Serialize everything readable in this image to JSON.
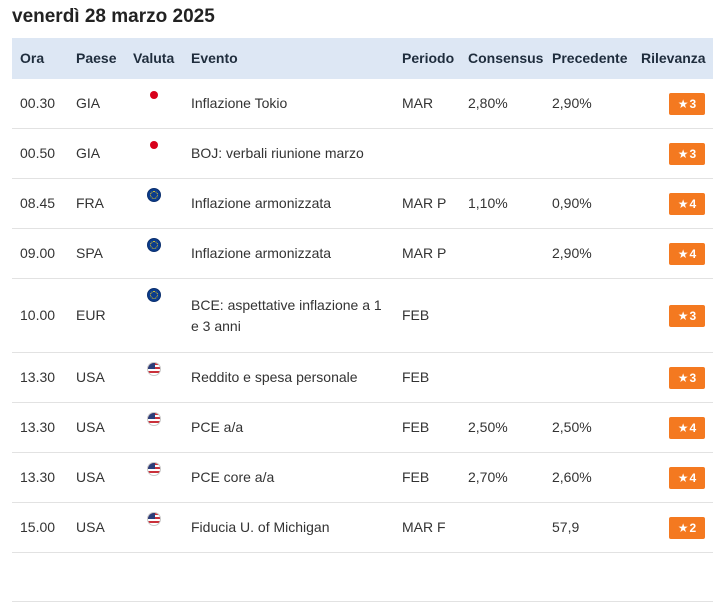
{
  "page": {
    "title": "venerdì 28 marzo 2025"
  },
  "table": {
    "headers": {
      "ora": "Ora",
      "paese": "Paese",
      "valuta": "Valuta",
      "evento": "Evento",
      "periodo": "Periodo",
      "consensus": "Consensus",
      "precedente": "Precedente",
      "rilevanza": "Rilevanza"
    },
    "rows": [
      {
        "ora": "00.30",
        "paese": "GIA",
        "flag": "japan-flag-icon",
        "evento": "Inflazione Tokio",
        "periodo": "MAR",
        "consensus": "2,80%",
        "precedente": "2,90%",
        "rilevanza": "3"
      },
      {
        "ora": "00.50",
        "paese": "GIA",
        "flag": "japan-flag-icon",
        "evento": "BOJ: verbali riunione marzo",
        "periodo": "",
        "consensus": "",
        "precedente": "",
        "rilevanza": "3"
      },
      {
        "ora": "08.45",
        "paese": "FRA",
        "flag": "eu-flag-icon",
        "evento": "Inflazione armonizzata",
        "periodo": "MAR P",
        "consensus": "1,10%",
        "precedente": "0,90%",
        "rilevanza": "4"
      },
      {
        "ora": "09.00",
        "paese": "SPA",
        "flag": "eu-flag-icon",
        "evento": "Inflazione armonizzata",
        "periodo": "MAR P",
        "consensus": "",
        "precedente": "2,90%",
        "rilevanza": "4"
      },
      {
        "ora": "10.00",
        "paese": "EUR",
        "flag": "eu-flag-icon",
        "evento": "BCE: aspettative inflazione a 1 e 3 anni",
        "periodo": "FEB",
        "consensus": "",
        "precedente": "",
        "rilevanza": "3"
      },
      {
        "ora": "13.30",
        "paese": "USA",
        "flag": "us-flag-icon",
        "evento": "Reddito e spesa personale",
        "periodo": "FEB",
        "consensus": "",
        "precedente": "",
        "rilevanza": "3"
      },
      {
        "ora": "13.30",
        "paese": "USA",
        "flag": "us-flag-icon",
        "evento": "PCE a/a",
        "periodo": "FEB",
        "consensus": "2,50%",
        "precedente": "2,50%",
        "rilevanza": "4"
      },
      {
        "ora": "13.30",
        "paese": "USA",
        "flag": "us-flag-icon",
        "evento": "PCE core a/a",
        "periodo": "FEB",
        "consensus": "2,70%",
        "precedente": "2,60%",
        "rilevanza": "4"
      },
      {
        "ora": "15.00",
        "paese": "USA",
        "flag": "us-flag-icon",
        "evento": "Fiducia U. of Michigan",
        "periodo": "MAR F",
        "consensus": "",
        "precedente": "57,9",
        "rilevanza": "2"
      }
    ]
  },
  "colors": {
    "header_bg": "#dde7f4",
    "badge_bg": "#f47920",
    "row_border": "#e2e2e2"
  }
}
